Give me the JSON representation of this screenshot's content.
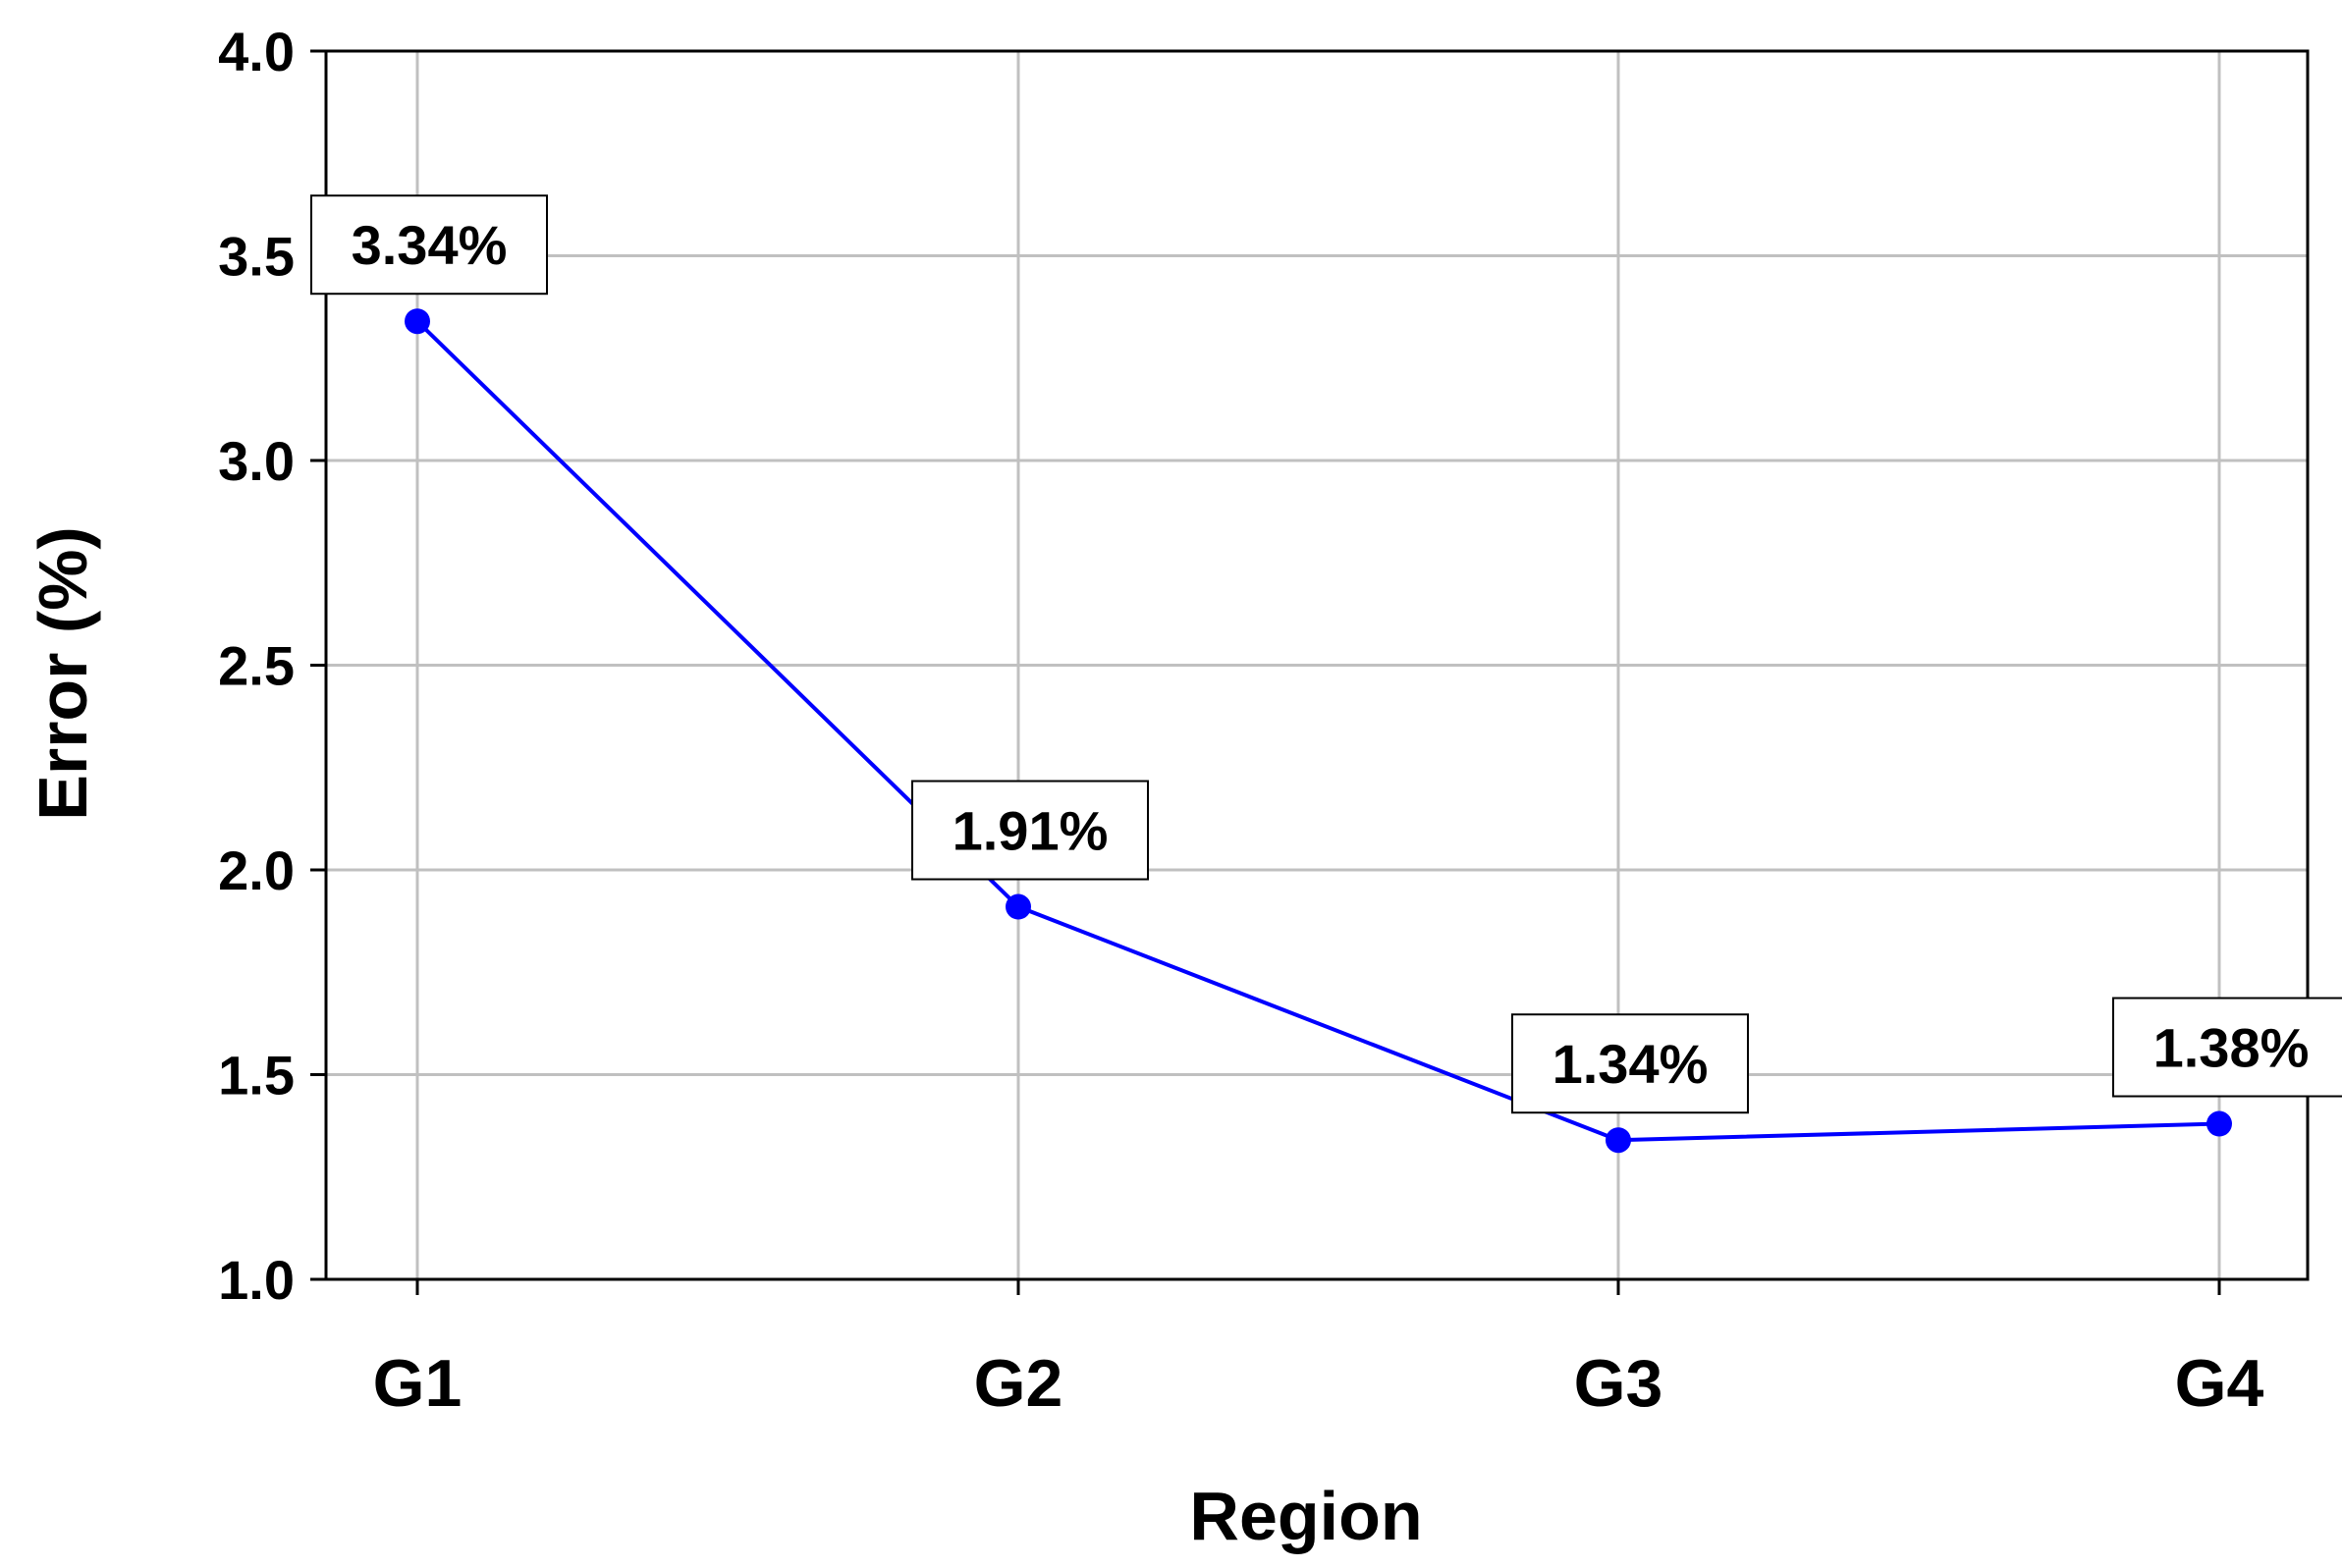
{
  "chart_data": {
    "type": "line",
    "title": "",
    "xlabel": "Region",
    "ylabel": "Error (%)",
    "categories": [
      "G1",
      "G2",
      "G3",
      "G4"
    ],
    "series": [
      {
        "values": [
          3.34,
          1.91,
          1.34,
          1.38
        ],
        "data_labels": [
          "3.34%",
          "1.91%",
          "1.34%",
          "1.38%"
        ],
        "color": "#0000ff",
        "marker": "circle"
      }
    ],
    "ylim": [
      1.0,
      4.0
    ],
    "yticks": [
      1.0,
      1.5,
      2.0,
      2.5,
      3.0,
      3.5,
      4.0
    ],
    "ytick_labels": [
      "1.0",
      "1.5",
      "2.0",
      "2.5",
      "3.0",
      "3.5",
      "4.0"
    ],
    "grid": true,
    "legend": "none"
  },
  "colors": {
    "line": "#0000ff",
    "grid": "#c0c0c0",
    "axis": "#000000",
    "label_box_border": "#000000",
    "label_box_fill": "#ffffff"
  }
}
